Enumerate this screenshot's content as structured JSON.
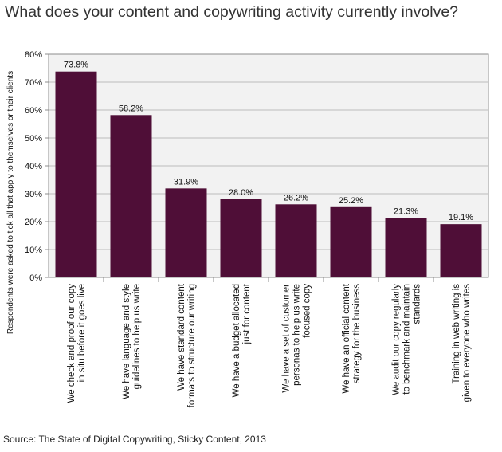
{
  "title": "What does your content and copywriting activity currently involve?",
  "source": "Source: The State of Digital Copywriting, Sticky Content, 2013",
  "chart_data": {
    "type": "bar",
    "ylabel": "Respondents were asked to tick all that apply to themselves or their clients",
    "ylim": [
      0,
      80
    ],
    "yticks": [
      "0%",
      "10%",
      "20%",
      "30%",
      "40%",
      "50%",
      "60%",
      "70%",
      "80%"
    ],
    "grid": true,
    "bar_color": "#4f0e37",
    "plot_background": "#f2f2f2",
    "categories": [
      [
        "We check and proof our copy",
        "in situ before it goes live"
      ],
      [
        "We have language and style",
        "guidelines to help us write"
      ],
      [
        "We have standard content",
        "formats to structure our writing"
      ],
      [
        "We have a budget allocated",
        "just for content"
      ],
      [
        "We have a set of customer",
        "personas to help us write",
        "focused copy"
      ],
      [
        "We have an official content",
        "strategy for the business"
      ],
      [
        "We audit our copy regularly",
        "to benchmark and maintain",
        "standards"
      ],
      [
        "Training in web writing is",
        "given to everyone who writes"
      ]
    ],
    "values": [
      73.8,
      58.2,
      31.9,
      28.0,
      26.2,
      25.2,
      21.3,
      19.1
    ],
    "data_labels": [
      "73.8%",
      "58.2%",
      "31.9%",
      "28.0%",
      "26.2%",
      "25.2%",
      "21.3%",
      "19.1%"
    ]
  }
}
